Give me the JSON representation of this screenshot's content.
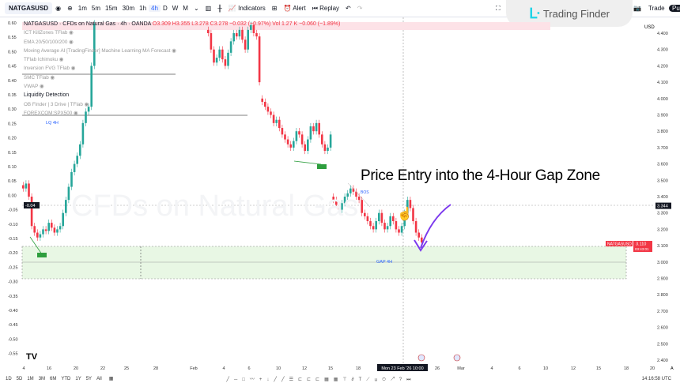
{
  "toolbar": {
    "symbol": "NATGASUSD",
    "intervals": [
      "1m",
      "5m",
      "15m",
      "30m",
      "1h",
      "4h",
      "D",
      "W",
      "M"
    ],
    "active_interval": "4h",
    "indicators": "Indicators",
    "alert": "Alert",
    "replay": "Replay",
    "trade": "Trade",
    "publish": "Pu"
  },
  "logo": {
    "text": "Trading Finder"
  },
  "legend": {
    "title": "NATGASUSD · CFDs on Natural Gas · 4h · OANDA",
    "ohlc": "O3.309 H3.355 L3.278 C3.278 −0.032 (−0.97%)",
    "vol": "Vol 1.27 K −0.060 (−1.89%)",
    "indicators": [
      "ICT KillZones TFlab",
      "EMA 20/50/100/200",
      "Moving Average AI [TradingFinder] Machine Learning MA Forecast",
      "TFlab Ichimoku",
      "Inversion FVG TFlab",
      "SMC TFlab",
      "VWAP",
      "Liquidity Detection",
      "OB Finder | 3 Drive | TFlab",
      "FOREXCOM:SPX500"
    ],
    "lq_label": "LQ 4H"
  },
  "watermark": "CFDs on Natural Gas",
  "annotation": "Price Entry into the 4-Hour Gap Zone",
  "gap_label": "GAP 4H",
  "bos_label": "BOS",
  "currency": "USD",
  "right_axis": [
    "4.400",
    "4.300",
    "4.200",
    "4.100",
    "4.000",
    "3.900",
    "3.800",
    "3.700",
    "3.600",
    "3.500",
    "3.400",
    "3.300",
    "3.200",
    "3.100",
    "3.000",
    "2.900",
    "2.800",
    "2.700",
    "2.600",
    "2.500",
    "2.400"
  ],
  "left_axis": [
    "0.60",
    "0.55",
    "0.50",
    "0.45",
    "0.40",
    "0.35",
    "0.30",
    "0.25",
    "0.20",
    "0.15",
    "0.10",
    "0.05",
    "0.00",
    "-0.05",
    "-0.10",
    "-0.15",
    "-0.20",
    "-0.25",
    "-0.30",
    "-0.35",
    "-0.40",
    "-0.45",
    "-0.50",
    "-0.55"
  ],
  "crosshair": {
    "price": "3.344",
    "left_value": "-0.04",
    "time": "Mon 23 Feb '26  10:00"
  },
  "last_price": {
    "symbol": "NATGASUSD",
    "price": "3.110",
    "countdown": "03:43:01"
  },
  "time_axis": [
    "4",
    "16",
    "20",
    "22",
    "25",
    "28",
    "Feb",
    "4",
    "6",
    "10",
    "12",
    "15",
    "18",
    "26",
    "Mar",
    "4",
    "6",
    "10",
    "12",
    "15",
    "18",
    "20"
  ],
  "ranges": [
    "1D",
    "5D",
    "1M",
    "3M",
    "6M",
    "YTD",
    "1Y",
    "5Y",
    "All"
  ],
  "clock": "14:16:58 UTC",
  "colors": {
    "up": "#26a69a",
    "down": "#f23645",
    "gap_zone": "#e8f7e4",
    "arrow": "#7c3aed"
  },
  "chart_data": {
    "type": "candlestick",
    "segments": [
      {
        "start": 0,
        "closes": [
          3.45,
          3.48,
          3.4,
          3.22,
          3.18,
          3.15,
          3.17,
          3.2,
          3.19,
          3.24,
          3.21,
          3.18,
          3.2,
          3.22,
          3.3,
          3.38,
          3.46,
          3.55,
          3.6,
          3.65,
          3.72,
          3.85,
          3.92,
          3.95,
          4.2,
          4.46
        ]
      },
      {
        "start": 65,
        "closes": [
          4.4,
          4.3,
          4.22,
          4.25,
          4.3,
          4.24,
          4.2,
          4.28,
          4.35,
          4.4,
          4.38,
          4.42,
          4.36,
          4.3,
          4.42,
          4.45,
          4.4,
          4.38,
          4.1
        ]
      },
      {
        "start": 84,
        "closes": [
          3.98,
          3.95,
          3.92,
          3.9,
          3.85,
          3.87,
          3.82,
          3.78,
          3.75,
          3.72,
          3.7,
          3.74,
          3.8,
          3.78,
          3.72,
          3.68,
          3.75,
          3.83,
          3.8,
          3.85,
          3.78,
          3.72,
          3.68,
          3.7,
          3.78
        ]
      },
      {
        "start": 109,
        "closes": [
          3.38,
          3.35,
          3.32,
          3.36,
          3.4,
          3.42,
          3.45,
          3.43,
          3.4,
          3.38,
          3.3,
          3.28,
          3.25,
          3.22,
          3.2,
          3.25,
          3.3,
          3.24,
          3.2,
          3.22,
          3.28,
          3.25,
          3.2,
          3.18,
          3.22,
          3.3,
          3.38,
          3.33,
          3.25,
          3.18,
          3.15,
          3.12
        ]
      }
    ]
  }
}
